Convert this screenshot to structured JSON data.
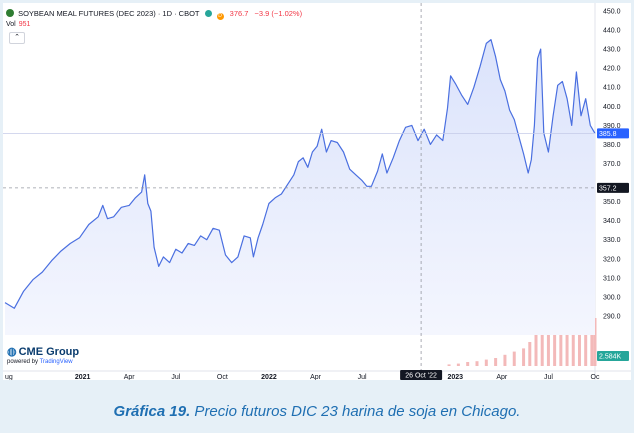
{
  "header": {
    "symbol": "SOYBEAN MEAL FUTURES (DEC 2023) · 1D · CBOT",
    "badge_d": "D",
    "price": "376.7",
    "change": "−3.9 (−1.02%)"
  },
  "volume": {
    "label": "Vol",
    "value": "951",
    "collapse_icon": "chevron-up-icon"
  },
  "brand": {
    "name": "CME Group",
    "powered_prefix": "powered by",
    "powered_name": "TradingView"
  },
  "caption": {
    "label": "Gráfica 19.",
    "text": " Precio futuros DIC 23 harina de soja en Chicago."
  },
  "colors": {
    "line": "#4a6fe0",
    "fill": "#e8edfd",
    "volume": "#f3b9b9",
    "crosshair": "#9598a1",
    "price_tag": "#2962ff",
    "dark_tag": "#131722",
    "vol_tag": "#26a69a"
  },
  "chart_data": {
    "type": "line",
    "title": "SOYBEAN MEAL FUTURES (DEC 2023) · 1D · CBOT",
    "xlabel": "",
    "ylabel": "",
    "ylim": [
      280,
      450
    ],
    "y_ticks": [
      "450.0",
      "440.0",
      "430.0",
      "420.0",
      "410.0",
      "400.0",
      "390.0",
      "380.0",
      "370.0",
      "360.0",
      "350.0",
      "340.0",
      "330.0",
      "320.0",
      "310.0",
      "300.0",
      "290.0"
    ],
    "x_ticks": [
      {
        "label": "ug",
        "t": 0.0
      },
      {
        "label": "2021",
        "t": 5.0
      },
      {
        "label": "Apr",
        "t": 8.0
      },
      {
        "label": "Jul",
        "t": 11.0
      },
      {
        "label": "Oct",
        "t": 14.0
      },
      {
        "label": "2022",
        "t": 17.0
      },
      {
        "label": "Apr",
        "t": 20.0
      },
      {
        "label": "Jul",
        "t": 23.0
      },
      {
        "label": "2023",
        "t": 29.0
      },
      {
        "label": "Apr",
        "t": 32.0
      },
      {
        "label": "Jul",
        "t": 35.0
      },
      {
        "label": "Oc",
        "t": 38.0
      }
    ],
    "crosshair": {
      "date_label": "26 Oct '22",
      "t": 26.8,
      "value_label": "357.2",
      "value": 357.2
    },
    "last_price": {
      "label": "385.8",
      "value": 385.8
    },
    "volume_label": "2.584K",
    "series": [
      {
        "points": [
          [
            0.0,
            297
          ],
          [
            0.6,
            294
          ],
          [
            1.2,
            303
          ],
          [
            1.8,
            309
          ],
          [
            2.4,
            313
          ],
          [
            3.0,
            319
          ],
          [
            3.6,
            324
          ],
          [
            4.2,
            328
          ],
          [
            4.8,
            331
          ],
          [
            5.4,
            338
          ],
          [
            6.0,
            342
          ],
          [
            6.3,
            348
          ],
          [
            6.6,
            341
          ],
          [
            7.0,
            342
          ],
          [
            7.5,
            347
          ],
          [
            8.0,
            348
          ],
          [
            8.4,
            352
          ],
          [
            8.8,
            355
          ],
          [
            9.0,
            364
          ],
          [
            9.2,
            349
          ],
          [
            9.4,
            345
          ],
          [
            9.6,
            326
          ],
          [
            9.9,
            316
          ],
          [
            10.2,
            321
          ],
          [
            10.6,
            318
          ],
          [
            11.0,
            325
          ],
          [
            11.4,
            323
          ],
          [
            11.8,
            328
          ],
          [
            12.2,
            327
          ],
          [
            12.6,
            332
          ],
          [
            13.0,
            330
          ],
          [
            13.4,
            336
          ],
          [
            13.8,
            335
          ],
          [
            14.2,
            322
          ],
          [
            14.6,
            318
          ],
          [
            15.0,
            321
          ],
          [
            15.4,
            332
          ],
          [
            15.8,
            331
          ],
          [
            16.0,
            321
          ],
          [
            16.3,
            331
          ],
          [
            16.6,
            338
          ],
          [
            17.0,
            349
          ],
          [
            17.4,
            352
          ],
          [
            17.8,
            354
          ],
          [
            18.2,
            359
          ],
          [
            18.6,
            364
          ],
          [
            18.9,
            371
          ],
          [
            19.2,
            373
          ],
          [
            19.5,
            368
          ],
          [
            19.8,
            376
          ],
          [
            20.1,
            379
          ],
          [
            20.4,
            388
          ],
          [
            20.7,
            376
          ],
          [
            21.0,
            382
          ],
          [
            21.4,
            381
          ],
          [
            21.8,
            376
          ],
          [
            22.2,
            367
          ],
          [
            22.6,
            364
          ],
          [
            23.0,
            361
          ],
          [
            23.3,
            358
          ],
          [
            23.6,
            358
          ],
          [
            24.0,
            366
          ],
          [
            24.3,
            375
          ],
          [
            24.6,
            365
          ],
          [
            25.0,
            373
          ],
          [
            25.4,
            382
          ],
          [
            25.8,
            389
          ],
          [
            26.2,
            390
          ],
          [
            26.6,
            382
          ],
          [
            27.0,
            388
          ],
          [
            27.4,
            380
          ],
          [
            27.8,
            385
          ],
          [
            28.2,
            382
          ],
          [
            28.5,
            399
          ],
          [
            28.7,
            416
          ],
          [
            29.0,
            412
          ],
          [
            29.4,
            406
          ],
          [
            29.8,
            401
          ],
          [
            30.2,
            410
          ],
          [
            30.6,
            421
          ],
          [
            31.0,
            433
          ],
          [
            31.3,
            435
          ],
          [
            31.6,
            426
          ],
          [
            31.9,
            414
          ],
          [
            32.2,
            408
          ],
          [
            32.5,
            398
          ],
          [
            32.8,
            393
          ],
          [
            33.1,
            384
          ],
          [
            33.4,
            375
          ],
          [
            33.7,
            365
          ],
          [
            33.9,
            372
          ],
          [
            34.1,
            390
          ],
          [
            34.3,
            425
          ],
          [
            34.5,
            430
          ],
          [
            34.7,
            386
          ],
          [
            35.0,
            376
          ],
          [
            35.3,
            395
          ],
          [
            35.6,
            411
          ],
          [
            35.9,
            413
          ],
          [
            36.2,
            404
          ],
          [
            36.5,
            390
          ],
          [
            36.8,
            418
          ],
          [
            37.1,
            395
          ],
          [
            37.4,
            404
          ],
          [
            37.7,
            390
          ],
          [
            38.0,
            385.8
          ]
        ]
      }
    ],
    "volume_bars": [
      [
        28.6,
        0.02
      ],
      [
        29.2,
        0.03
      ],
      [
        29.8,
        0.05
      ],
      [
        30.4,
        0.06
      ],
      [
        31.0,
        0.08
      ],
      [
        31.6,
        0.1
      ],
      [
        32.2,
        0.14
      ],
      [
        32.8,
        0.18
      ],
      [
        33.4,
        0.22
      ],
      [
        33.8,
        0.3
      ],
      [
        34.2,
        0.42
      ],
      [
        34.6,
        0.55
      ],
      [
        35.0,
        0.52
      ],
      [
        35.4,
        0.6
      ],
      [
        35.8,
        0.66
      ],
      [
        36.2,
        0.63
      ],
      [
        36.6,
        0.72
      ],
      [
        37.0,
        0.78
      ],
      [
        37.4,
        0.75
      ],
      [
        37.8,
        0.68
      ],
      [
        38.0,
        0.6
      ]
    ]
  }
}
